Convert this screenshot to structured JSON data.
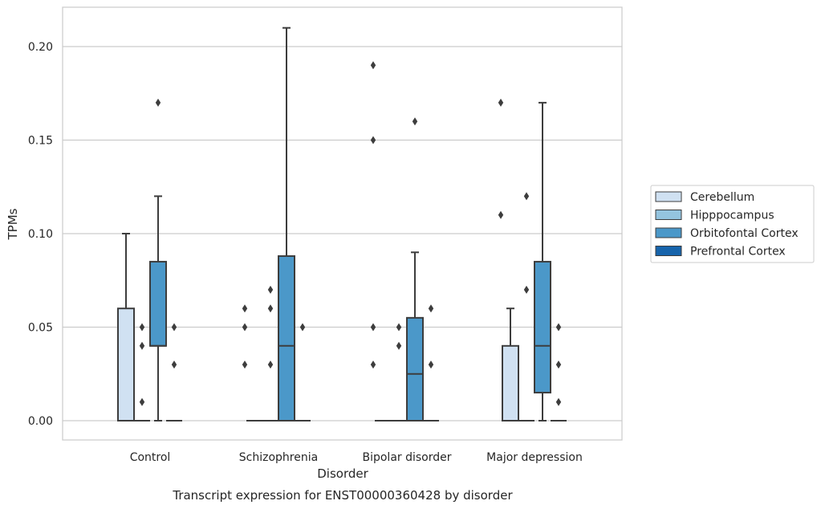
{
  "chart_data": {
    "type": "boxplot",
    "title": "Transcript expression for ENST00000360428 by disorder",
    "xlabel": "Disorder",
    "ylabel": "TPMs",
    "categories": [
      "Control",
      "Schizophrenia",
      "Bipolar disorder",
      "Major depression"
    ],
    "ylim": [
      -0.01,
      0.22
    ],
    "yticks": [
      0.0,
      0.05,
      0.1,
      0.15,
      0.2
    ],
    "ytick_labels": [
      "0.00",
      "0.05",
      "0.10",
      "0.15",
      "0.20"
    ],
    "grid": "horizontal",
    "legend_position": "right",
    "series": [
      {
        "name": "Cerebellum",
        "color": "#d0e1f2",
        "boxes": [
          {
            "q1": 0.0,
            "median": 0.0,
            "q3": 0.06,
            "whisker_low": 0.0,
            "whisker_high": 0.1,
            "outliers": []
          },
          {
            "q1": 0.0,
            "median": 0.0,
            "q3": 0.0,
            "whisker_low": 0.0,
            "whisker_high": 0.0,
            "outliers": []
          },
          {
            "q1": 0.0,
            "median": 0.0,
            "q3": 0.0,
            "whisker_low": 0.0,
            "whisker_high": 0.0,
            "outliers": []
          },
          {
            "q1": 0.0,
            "median": 0.0,
            "q3": 0.04,
            "whisker_low": 0.0,
            "whisker_high": 0.06,
            "outliers": []
          }
        ]
      },
      {
        "name": "Hipppocampus",
        "color": "#94c4df",
        "boxes": [
          {
            "q1": 0.0,
            "median": 0.0,
            "q3": 0.0,
            "whisker_low": 0.0,
            "whisker_high": 0.0,
            "outliers": [
              0.05,
              0.04,
              0.01
            ]
          },
          {
            "q1": 0.0,
            "median": 0.0,
            "q3": 0.0,
            "whisker_low": 0.0,
            "whisker_high": 0.0,
            "outliers": [
              0.07,
              0.06,
              0.03
            ]
          },
          {
            "q1": 0.0,
            "median": 0.0,
            "q3": 0.0,
            "whisker_low": 0.0,
            "whisker_high": 0.0,
            "outliers": [
              0.05,
              0.04
            ]
          },
          {
            "q1": 0.0,
            "median": 0.0,
            "q3": 0.0,
            "whisker_low": 0.0,
            "whisker_high": 0.0,
            "outliers": [
              0.12,
              0.07
            ]
          }
        ]
      },
      {
        "name": "Orbitofontal Cortex",
        "color": "#4b98c9",
        "boxes": [
          {
            "q1": 0.04,
            "median": 0.04,
            "q3": 0.085,
            "whisker_low": 0.0,
            "whisker_high": 0.12,
            "outliers": [
              0.17
            ]
          },
          {
            "q1": 0.0,
            "median": 0.04,
            "q3": 0.088,
            "whisker_low": 0.0,
            "whisker_high": 0.21,
            "outliers": []
          },
          {
            "q1": 0.0,
            "median": 0.025,
            "q3": 0.055,
            "whisker_low": 0.0,
            "whisker_high": 0.09,
            "outliers": [
              0.16
            ]
          },
          {
            "q1": 0.015,
            "median": 0.04,
            "q3": 0.085,
            "whisker_low": 0.0,
            "whisker_high": 0.17,
            "outliers": []
          }
        ]
      },
      {
        "name": "Prefrontal Cortex",
        "color": "#1764ab",
        "boxes": [
          {
            "q1": 0.0,
            "median": 0.0,
            "q3": 0.0,
            "whisker_low": 0.0,
            "whisker_high": 0.0,
            "outliers": [
              0.05,
              0.03
            ]
          },
          {
            "q1": 0.0,
            "median": 0.0,
            "q3": 0.0,
            "whisker_low": 0.0,
            "whisker_high": 0.0,
            "outliers": [
              0.05
            ]
          },
          {
            "q1": 0.0,
            "median": 0.0,
            "q3": 0.0,
            "whisker_low": 0.0,
            "whisker_high": 0.0,
            "outliers": [
              0.06,
              0.03
            ]
          },
          {
            "q1": 0.0,
            "median": 0.0,
            "q3": 0.0,
            "whisker_low": 0.0,
            "whisker_high": 0.0,
            "outliers": [
              0.05,
              0.03,
              0.01
            ]
          }
        ]
      }
    ],
    "extra_points": [
      {
        "category": "Schizophrenia",
        "series": "Hipppocampus",
        "side": "left",
        "values": [
          0.06,
          0.05,
          0.03
        ]
      },
      {
        "category": "Bipolar disorder",
        "series": "Hipppocampus",
        "side": "left",
        "values": [
          0.15,
          0.19,
          0.05,
          0.03
        ]
      },
      {
        "category": "Major depression",
        "series": "Hipppocampus",
        "side": "left",
        "values": [
          0.17,
          0.11
        ]
      }
    ]
  }
}
